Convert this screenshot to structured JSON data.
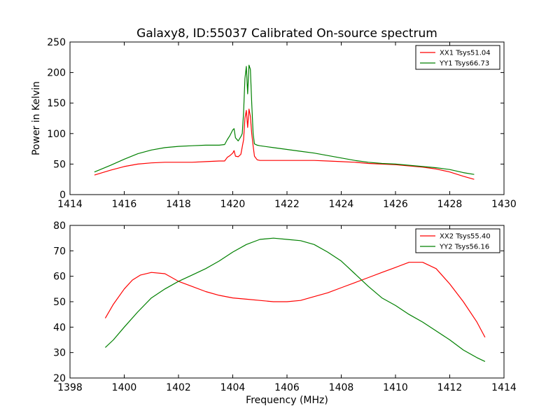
{
  "title": "Galaxy8, ID:55037 Calibrated On-source spectrum",
  "chart_data": [
    {
      "type": "line",
      "title": "Galaxy8, ID:55037 Calibrated On-source spectrum",
      "xlabel": "",
      "ylabel": "Power in Kelvin",
      "xlim": [
        1414,
        1430
      ],
      "ylim": [
        0,
        250
      ],
      "xticks": [
        "1414",
        "1416",
        "1418",
        "1420",
        "1422",
        "1424",
        "1426",
        "1428",
        "1430"
      ],
      "yticks": [
        "0",
        "50",
        "100",
        "150",
        "200",
        "250"
      ],
      "legend_position": "top-right",
      "grid": false,
      "series": [
        {
          "name": "XX1 Tsys51.04",
          "color": "#ff0000",
          "x": [
            1414.9,
            1415.5,
            1416.0,
            1416.5,
            1417.0,
            1417.5,
            1418.0,
            1418.5,
            1419.0,
            1419.5,
            1419.7,
            1419.8,
            1419.9,
            1420.0,
            1420.05,
            1420.1,
            1420.2,
            1420.3,
            1420.4,
            1420.45,
            1420.5,
            1420.55,
            1420.6,
            1420.65,
            1420.7,
            1420.75,
            1420.8,
            1420.9,
            1421.0,
            1421.5,
            1422.0,
            1422.5,
            1423.0,
            1423.5,
            1424.0,
            1424.5,
            1425.0,
            1425.5,
            1426.0,
            1426.5,
            1427.0,
            1427.5,
            1428.0,
            1428.5,
            1428.9
          ],
          "y": [
            32,
            40,
            46,
            50,
            52,
            53,
            53,
            53,
            54,
            55,
            55,
            61,
            64,
            68,
            72,
            63,
            62,
            66,
            90,
            125,
            138,
            110,
            140,
            128,
            100,
            80,
            63,
            57,
            56,
            56,
            56,
            56,
            56,
            55,
            54,
            53,
            51,
            50,
            49,
            47,
            45,
            42,
            37,
            30,
            25
          ]
        },
        {
          "name": "YY1 Tsys66.73",
          "color": "#008000",
          "x": [
            1414.9,
            1415.5,
            1416.0,
            1416.5,
            1417.0,
            1417.5,
            1418.0,
            1418.5,
            1419.0,
            1419.5,
            1419.7,
            1419.8,
            1419.9,
            1420.0,
            1420.05,
            1420.1,
            1420.2,
            1420.3,
            1420.35,
            1420.4,
            1420.45,
            1420.5,
            1420.55,
            1420.6,
            1420.65,
            1420.7,
            1420.75,
            1420.8,
            1420.9,
            1421.0,
            1421.5,
            1422.0,
            1422.5,
            1423.0,
            1423.5,
            1424.0,
            1424.5,
            1425.0,
            1425.5,
            1426.0,
            1426.5,
            1427.0,
            1427.5,
            1428.0,
            1428.5,
            1428.9
          ],
          "y": [
            37,
            48,
            58,
            67,
            73,
            77,
            79,
            80,
            81,
            81,
            82,
            90,
            97,
            106,
            108,
            93,
            88,
            95,
            100,
            135,
            190,
            210,
            165,
            212,
            205,
            150,
            100,
            83,
            81,
            80,
            77,
            74,
            71,
            68,
            64,
            60,
            56,
            53,
            51,
            50,
            48,
            46,
            44,
            41,
            36,
            33
          ]
        }
      ]
    },
    {
      "type": "line",
      "title": "",
      "xlabel": "Frequency (MHz)",
      "ylabel": "",
      "xlim": [
        1398,
        1414
      ],
      "ylim": [
        20,
        80
      ],
      "xticks": [
        "1398",
        "1400",
        "1402",
        "1404",
        "1406",
        "1408",
        "1410",
        "1412",
        "1414"
      ],
      "yticks": [
        "20",
        "30",
        "40",
        "50",
        "60",
        "70",
        "80"
      ],
      "legend_position": "top-right",
      "grid": false,
      "series": [
        {
          "name": "XX2 Tsys55.40",
          "color": "#ff0000",
          "x": [
            1399.3,
            1399.6,
            1400.0,
            1400.3,
            1400.6,
            1401.0,
            1401.5,
            1402.0,
            1402.5,
            1403.0,
            1403.5,
            1404.0,
            1404.5,
            1405.0,
            1405.5,
            1406.0,
            1406.5,
            1407.0,
            1407.5,
            1408.0,
            1408.5,
            1409.0,
            1409.5,
            1410.0,
            1410.5,
            1411.0,
            1411.5,
            1412.0,
            1412.5,
            1413.0,
            1413.3
          ],
          "y": [
            43.5,
            49,
            55,
            58.5,
            60.5,
            61.5,
            61,
            58,
            56,
            54,
            52.5,
            51.5,
            51,
            50.5,
            50,
            50,
            50.5,
            52,
            53.5,
            55.5,
            57.5,
            59.5,
            61.5,
            63.5,
            65.5,
            65.5,
            63,
            57,
            50,
            42,
            36
          ]
        },
        {
          "name": "YY2 Tsys56.16",
          "color": "#008000",
          "x": [
            1399.3,
            1399.6,
            1400.0,
            1400.5,
            1401.0,
            1401.5,
            1402.0,
            1402.5,
            1403.0,
            1403.5,
            1404.0,
            1404.5,
            1405.0,
            1405.5,
            1406.0,
            1406.5,
            1407.0,
            1407.5,
            1408.0,
            1408.5,
            1409.0,
            1409.5,
            1410.0,
            1410.5,
            1411.0,
            1411.5,
            1412.0,
            1412.5,
            1413.0,
            1413.3
          ],
          "y": [
            32,
            35,
            40,
            46,
            51.5,
            55,
            58,
            60.5,
            63,
            66,
            69.5,
            72.5,
            74.5,
            75,
            74.5,
            74,
            72.5,
            69.5,
            66,
            61,
            56,
            51.5,
            48.5,
            45,
            42,
            38.5,
            35,
            31,
            28,
            26.5
          ]
        }
      ]
    }
  ]
}
